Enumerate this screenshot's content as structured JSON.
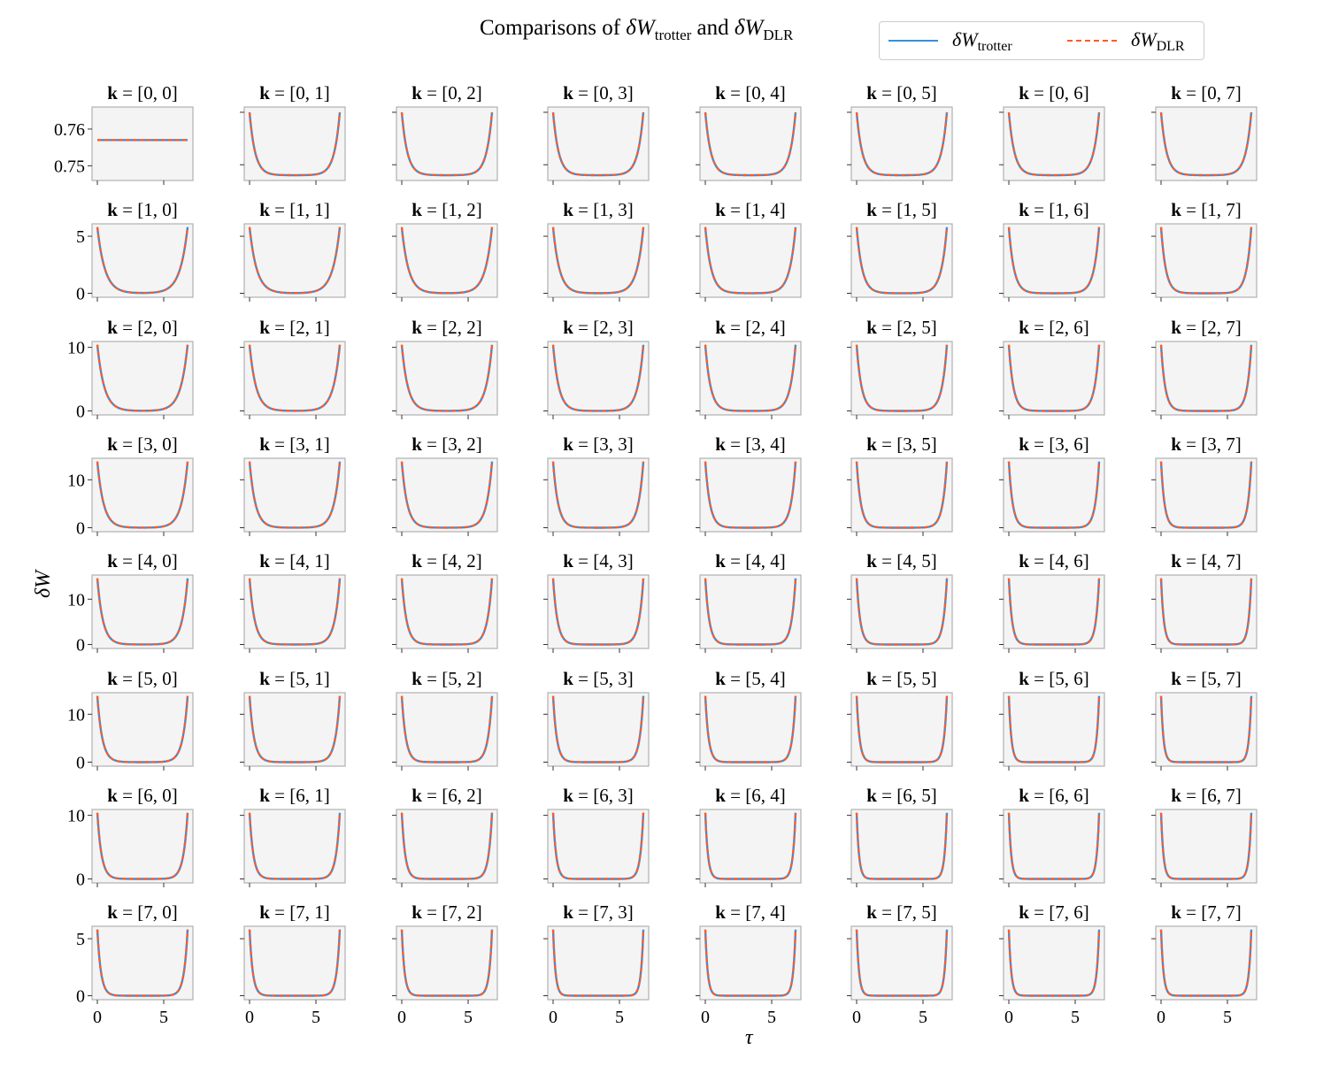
{
  "chart_data": {
    "type": "line",
    "title": {
      "prefix": "Comparisons of ",
      "sym1": "δW",
      "sub1": "trotter",
      "mid": " and ",
      "sym2": "δW",
      "sub2": "DLR"
    },
    "xlabel": "τ",
    "ylabel": "δW",
    "legend_position": "top-right",
    "series": [
      {
        "name_symbol": "δW",
        "name_sub": "trotter",
        "color": "#3a8fd9",
        "style": "solid"
      },
      {
        "name_symbol": "δW",
        "name_sub": "DLR",
        "color": "#ff5a26",
        "style": "dashed"
      }
    ],
    "grid": false,
    "x_range": [
      0,
      6.8
    ],
    "x_ticks": [
      "0",
      "5"
    ],
    "subplot_title_prefix": "k",
    "row_y_ticks": [
      [
        "0.76",
        "0.75"
      ],
      [
        "5",
        "0"
      ],
      [
        "10",
        "0"
      ],
      [
        "10",
        "0"
      ],
      [
        "10",
        "0"
      ],
      [
        "10",
        "0"
      ],
      [
        "10",
        "0"
      ],
      [
        "5",
        "0"
      ]
    ],
    "row_peak_values": [
      0.76,
      5.8,
      10.4,
      13.8,
      14.6,
      13.8,
      10.4,
      5.8
    ],
    "subplots_k": [
      [
        "[0, 0]",
        "[0, 1]",
        "[0, 2]",
        "[0, 3]",
        "[0, 4]",
        "[0, 5]",
        "[0, 6]",
        "[0, 7]"
      ],
      [
        "[1, 0]",
        "[1, 1]",
        "[1, 2]",
        "[1, 3]",
        "[1, 4]",
        "[1, 5]",
        "[1, 6]",
        "[1, 7]"
      ],
      [
        "[2, 0]",
        "[2, 1]",
        "[2, 2]",
        "[2, 3]",
        "[2, 4]",
        "[2, 5]",
        "[2, 6]",
        "[2, 7]"
      ],
      [
        "[3, 0]",
        "[3, 1]",
        "[3, 2]",
        "[3, 3]",
        "[3, 4]",
        "[3, 5]",
        "[3, 6]",
        "[3, 7]"
      ],
      [
        "[4, 0]",
        "[4, 1]",
        "[4, 2]",
        "[4, 3]",
        "[4, 4]",
        "[4, 5]",
        "[4, 6]",
        "[4, 7]"
      ],
      [
        "[5, 0]",
        "[5, 1]",
        "[5, 2]",
        "[5, 3]",
        "[5, 4]",
        "[5, 5]",
        "[5, 6]",
        "[5, 7]"
      ],
      [
        "[6, 0]",
        "[6, 1]",
        "[6, 2]",
        "[6, 3]",
        "[6, 4]",
        "[6, 5]",
        "[6, 6]",
        "[6, 7]"
      ],
      [
        "[7, 0]",
        "[7, 1]",
        "[7, 2]",
        "[7, 3]",
        "[7, 4]",
        "[7, 5]",
        "[7, 6]",
        "[7, 7]"
      ]
    ],
    "constant_subplot_value": 0.757
  }
}
